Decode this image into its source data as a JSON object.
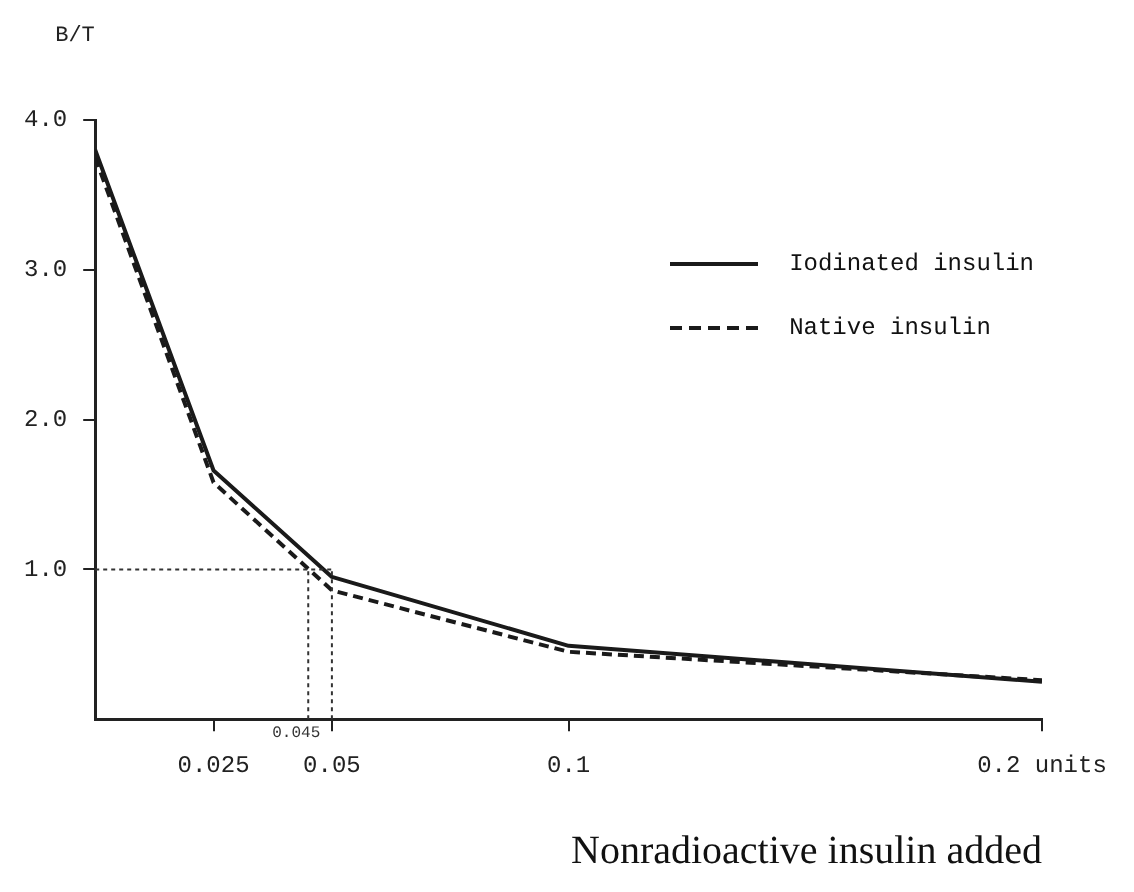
{
  "chart_data": {
    "type": "line",
    "ylabel": "B/T",
    "xlabel": "Nonradioactive insulin added",
    "xlim": [
      0,
      0.2
    ],
    "xticks": [
      0.025,
      0.05,
      0.1,
      {
        "value": 0.2,
        "label": "0.2 units"
      }
    ],
    "ylim": [
      0,
      4
    ],
    "yticks": [
      {
        "value": 1,
        "label": "1.0"
      },
      {
        "value": 2,
        "label": "2.0"
      },
      {
        "value": 3,
        "label": "3.0"
      },
      {
        "value": 4,
        "label": "4.0"
      }
    ],
    "x": [
      0,
      0.025,
      0.05,
      0.1,
      0.2
    ],
    "series": [
      {
        "name": "Iodinated insulin",
        "color": "#1a1a1a",
        "values": [
          3.8,
          1.66,
          0.95,
          0.49,
          0.25
        ],
        "line_style": "solid"
      },
      {
        "name": "Native insulin",
        "color": "#1a1a1a",
        "values": [
          3.75,
          1.58,
          0.86,
          0.45,
          0.26
        ],
        "line_style": "dashed"
      }
    ],
    "ref_lines": [
      {
        "axis": "y",
        "value": 1,
        "line_style": "dotted"
      },
      {
        "axis": "x",
        "value": 0.045,
        "label": "0.045",
        "line_style": "dotted"
      },
      {
        "axis": "x",
        "value": 0.05,
        "line_style": "dotted"
      }
    ],
    "legend": "top right",
    "marker": "none",
    "grid": false
  }
}
